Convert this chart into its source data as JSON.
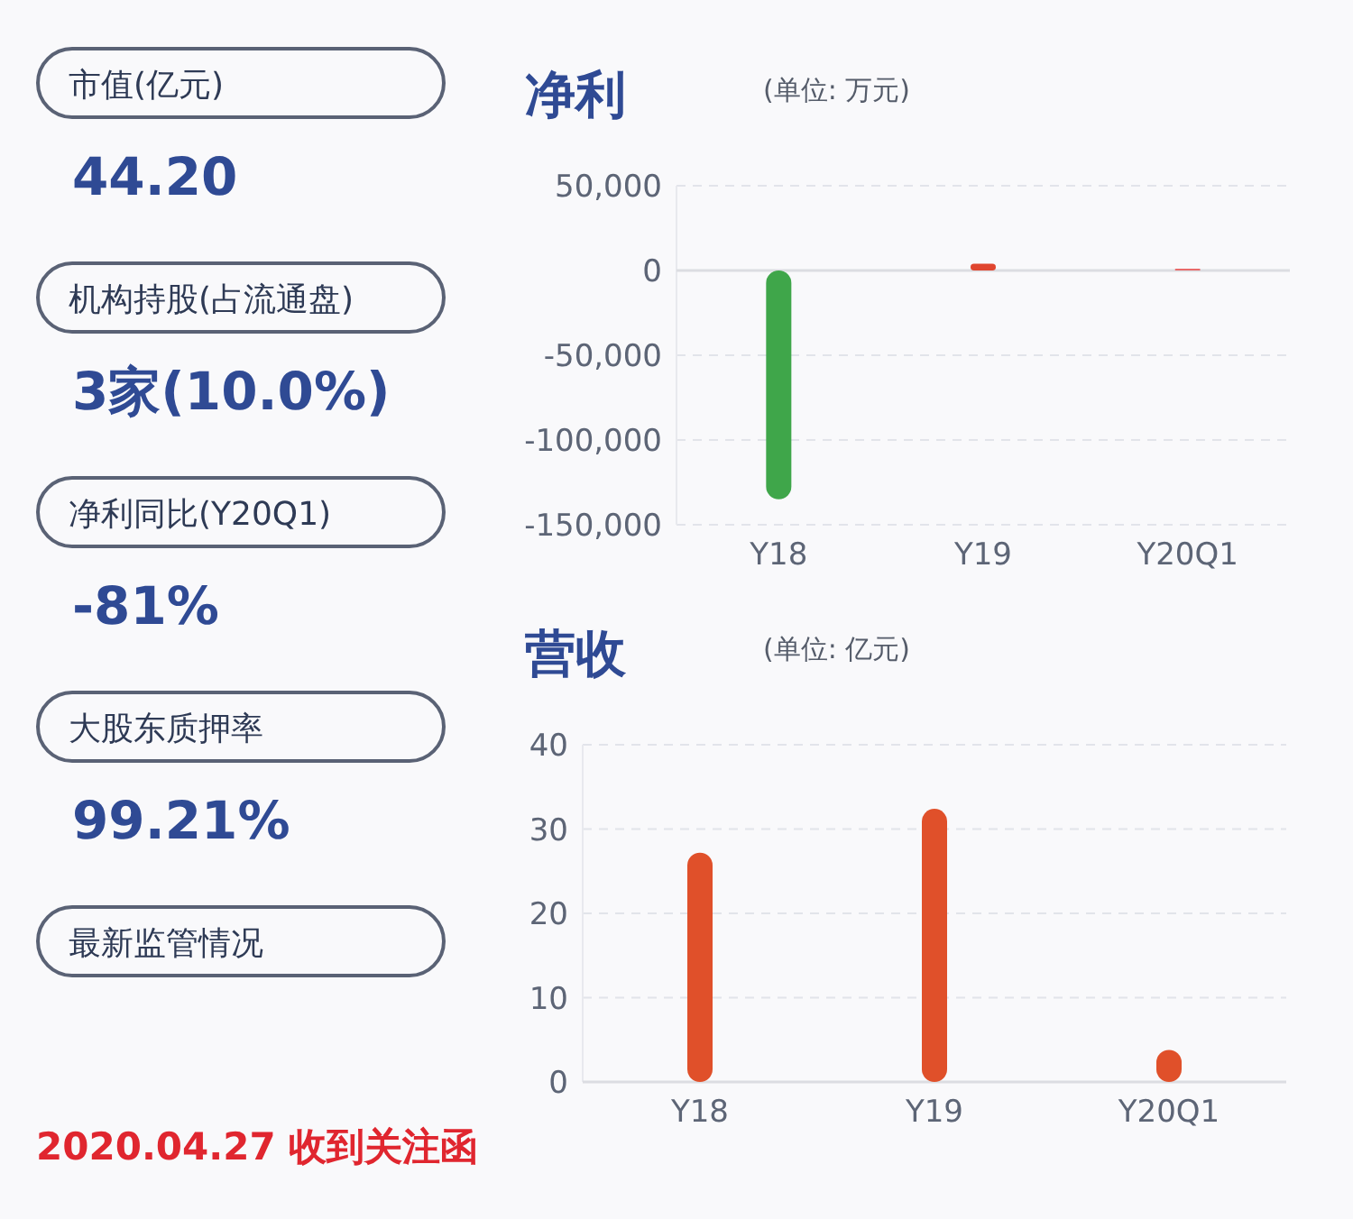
{
  "chart_data": [
    {
      "type": "other",
      "annotations": [
        "市值(亿元)",
        "44.20",
        "机构持股(占流通盘)",
        "3家(10.0%)",
        "净利同比(Y20Q1)",
        "-81%",
        "大股东质押率",
        "99.21%",
        "最新监管情况",
        "2020.04.27 收到关注函"
      ]
    },
    {
      "type": "bar",
      "title": "净利",
      "subtitle": "(单位: 万元)",
      "categories": [
        "Y18",
        "Y19",
        "Y20Q1"
      ],
      "values": [
        -135000,
        4000,
        1000
      ],
      "colors": [
        "#3fa64a",
        "#e0462f",
        "#e86a6a"
      ],
      "ylim": [
        -150000,
        50000
      ],
      "yticks": [
        {
          "value": -150000,
          "label": "-150,000"
        },
        {
          "value": -100000,
          "label": "-100,000"
        },
        {
          "value": -50000,
          "label": "-50,000"
        },
        0,
        {
          "value": 50000,
          "label": "50,000"
        }
      ],
      "grid": "y"
    },
    {
      "type": "bar",
      "title": "营收",
      "subtitle": "(单位: 亿元)",
      "categories": [
        "Y18",
        "Y19",
        "Y20Q1"
      ],
      "values": [
        27.2,
        32.4,
        3.8
      ],
      "color": "#e0502a",
      "ylim": [
        0,
        40
      ],
      "yticks": [
        0,
        10,
        20,
        30,
        40
      ],
      "grid": "y"
    }
  ]
}
